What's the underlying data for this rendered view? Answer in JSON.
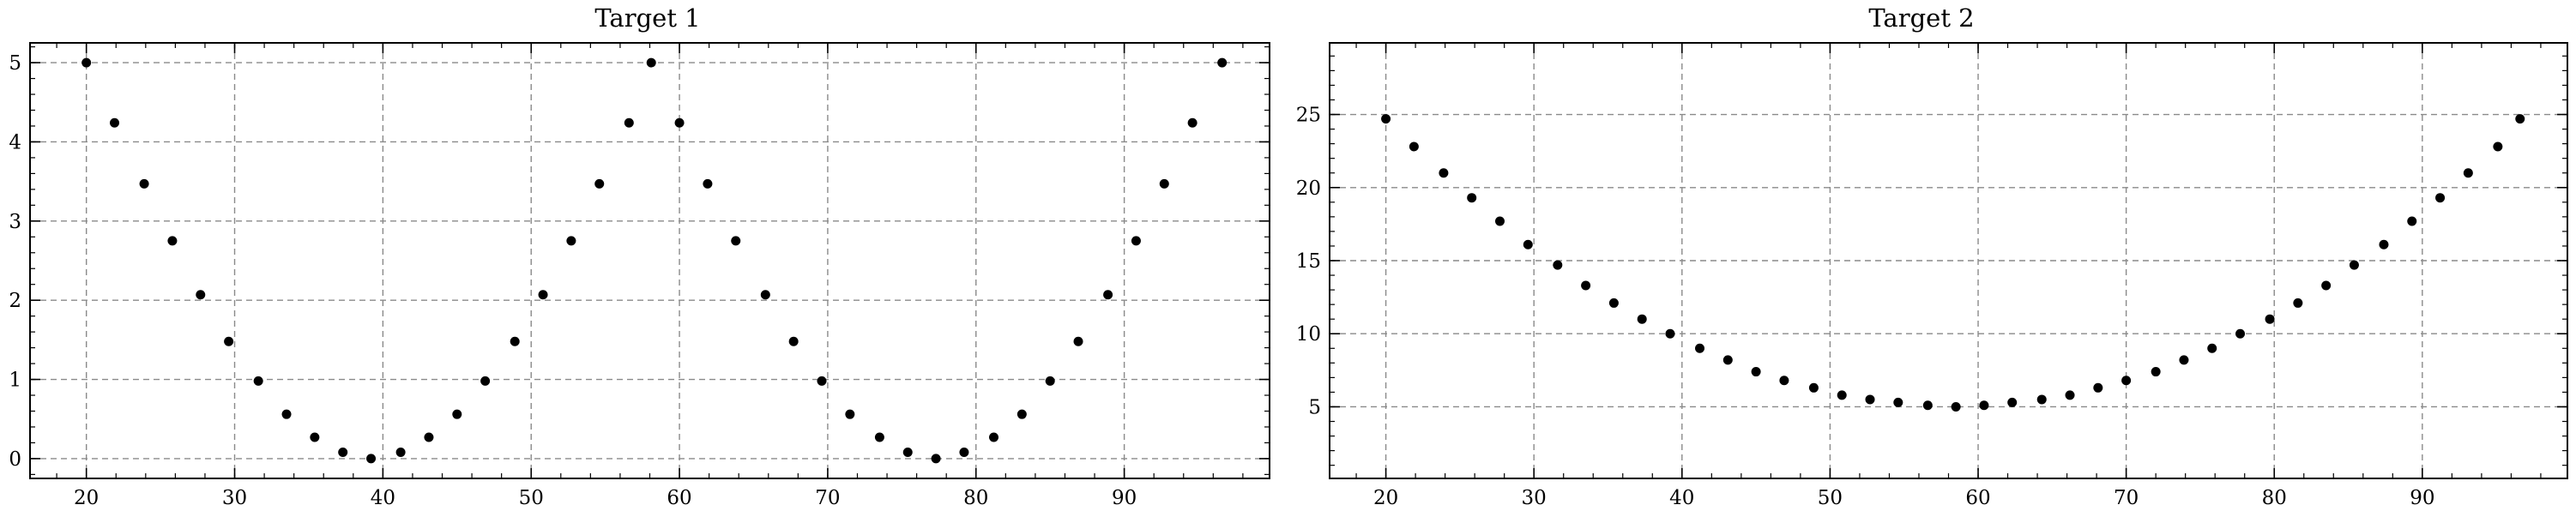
{
  "chart_data": [
    {
      "type": "scatter",
      "title": "Target 1",
      "xlabel": "",
      "ylabel": "",
      "xlim": [
        16.2,
        99.8
      ],
      "ylim": [
        -0.25,
        5.25
      ],
      "xticks": [
        20,
        30,
        40,
        50,
        60,
        70,
        80,
        90
      ],
      "yticks": [
        0,
        1,
        2,
        3,
        4,
        5
      ],
      "grid": true,
      "series": [
        {
          "x": [
            20,
            21.9,
            23.9,
            25.8,
            27.7,
            29.6,
            31.6,
            33.5,
            35.4,
            37.3,
            39.2,
            41.2,
            43.1,
            45,
            46.9,
            48.9,
            50.8,
            52.7,
            54.6,
            56.6,
            58.1,
            60,
            61.9,
            63.8,
            65.8,
            67.7,
            69.6,
            71.5,
            73.5,
            75.4,
            77.3,
            79.2,
            81.2,
            83.1,
            85,
            86.9,
            88.9,
            90.8,
            92.7,
            94.6,
            96.6
          ],
          "values": [
            5,
            4.24,
            3.47,
            2.75,
            2.07,
            1.48,
            0.98,
            0.56,
            0.27,
            0.08,
            0,
            0.08,
            0.27,
            0.56,
            0.98,
            1.48,
            2.07,
            2.75,
            3.47,
            4.24,
            5,
            4.24,
            3.47,
            2.75,
            2.07,
            1.48,
            0.98,
            0.56,
            0.27,
            0.08,
            0,
            0.08,
            0.27,
            0.56,
            0.98,
            1.48,
            2.07,
            2.75,
            3.47,
            4.24,
            5
          ]
        }
      ]
    },
    {
      "type": "scatter",
      "title": "Target 2",
      "xlabel": "",
      "ylabel": "",
      "xlim": [
        16.2,
        99.8
      ],
      "ylim": [
        0.1,
        29.9
      ],
      "xticks": [
        20,
        30,
        40,
        50,
        60,
        70,
        80,
        90
      ],
      "yticks": [
        5,
        10,
        15,
        20,
        25
      ],
      "grid": true,
      "series": [
        {
          "x": [
            20,
            21.9,
            23.9,
            25.8,
            27.7,
            29.6,
            31.6,
            33.5,
            35.4,
            37.3,
            39.2,
            41.2,
            43.1,
            45,
            46.9,
            48.9,
            50.8,
            52.7,
            54.6,
            56.6,
            58.5,
            60.4,
            62.3,
            64.3,
            66.2,
            68.1,
            70,
            72,
            73.9,
            75.8,
            77.7,
            79.7,
            81.6,
            83.5,
            85.4,
            87.4,
            89.3,
            91.2,
            93.1,
            95.1,
            96.6
          ],
          "values": [
            24.7,
            22.8,
            21.0,
            19.3,
            17.7,
            16.1,
            14.7,
            13.3,
            12.1,
            11.0,
            10.0,
            9.0,
            8.2,
            7.4,
            6.8,
            6.3,
            5.8,
            5.5,
            5.3,
            5.1,
            5.0,
            5.1,
            5.3,
            5.5,
            5.8,
            6.3,
            6.8,
            7.4,
            8.2,
            9.0,
            10.0,
            11.0,
            12.1,
            13.3,
            14.7,
            16.1,
            17.7,
            19.3,
            21.0,
            22.8,
            24.7
          ]
        }
      ]
    }
  ]
}
